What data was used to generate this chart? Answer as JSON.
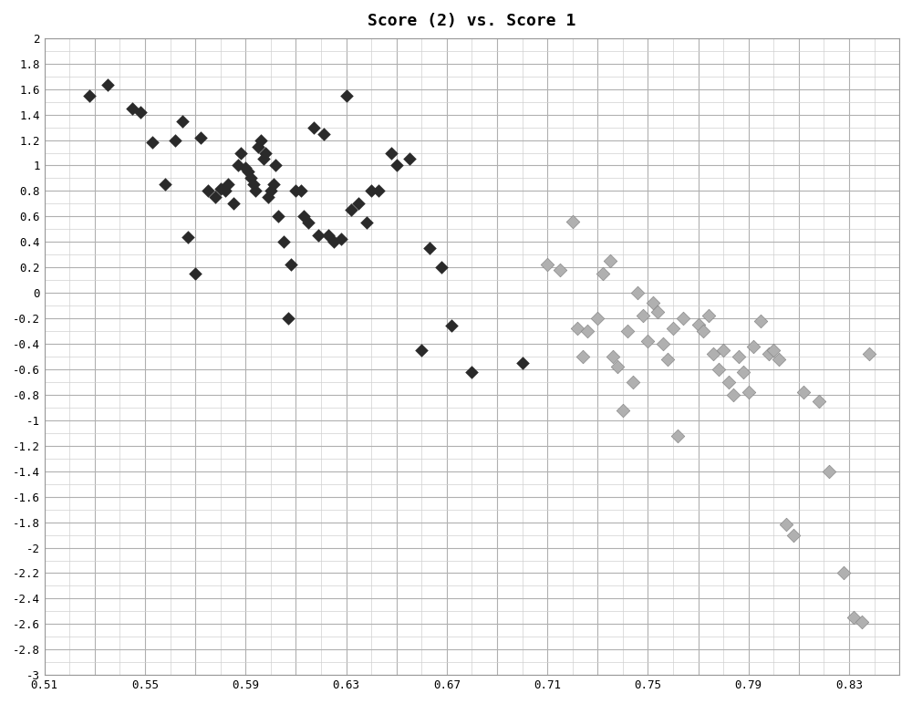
{
  "title": "Score (2) vs. Score 1",
  "xlim": [
    0.51,
    0.85
  ],
  "ylim": [
    -3.0,
    2.0
  ],
  "xticks": [
    0.51,
    0.53,
    0.55,
    0.57,
    0.59,
    0.61,
    0.63,
    0.65,
    0.67,
    0.69,
    0.71,
    0.73,
    0.75,
    0.77,
    0.79,
    0.81,
    0.83,
    0.85
  ],
  "yticks": [
    -3.0,
    -2.8,
    -2.6,
    -2.4,
    -2.2,
    -2.0,
    -1.8,
    -1.6,
    -1.4,
    -1.2,
    -1.0,
    -0.8,
    -0.6,
    -0.4,
    -0.2,
    0.0,
    0.2,
    0.4,
    0.6,
    0.8,
    1.0,
    1.2,
    1.4,
    1.6,
    1.8,
    2.0
  ],
  "xtick_labels": [
    "0.51",
    "",
    "0.55",
    "",
    "0.59",
    "",
    "0.63",
    "",
    "0.67",
    "",
    "0.71",
    "",
    "0.75",
    "",
    "0.79",
    "",
    "0.83",
    ""
  ],
  "ytick_labels": [
    "-3",
    "-2.8",
    "-2.6",
    "-2.4",
    "-2.2",
    "-2",
    "-1.8",
    "-1.6",
    "-1.4",
    "-1.2",
    "-1",
    "-0.8",
    "-0.6",
    "-0.4",
    "-0.2",
    "0",
    "0.2",
    "0.4",
    "0.6",
    "0.8",
    "1",
    "1.2",
    "1.4",
    "1.6",
    "1.8",
    "2"
  ],
  "dark_x": [
    0.528,
    0.535,
    0.545,
    0.548,
    0.553,
    0.558,
    0.562,
    0.565,
    0.567,
    0.57,
    0.572,
    0.575,
    0.578,
    0.58,
    0.582,
    0.583,
    0.585,
    0.587,
    0.588,
    0.59,
    0.591,
    0.592,
    0.593,
    0.594,
    0.595,
    0.596,
    0.597,
    0.598,
    0.599,
    0.6,
    0.601,
    0.602,
    0.603,
    0.605,
    0.607,
    0.608,
    0.61,
    0.612,
    0.613,
    0.615,
    0.617,
    0.619,
    0.621,
    0.623,
    0.625,
    0.628,
    0.63,
    0.632,
    0.635,
    0.638,
    0.64,
    0.643,
    0.648,
    0.65,
    0.655,
    0.66,
    0.663,
    0.668,
    0.672,
    0.68,
    0.7
  ],
  "dark_y": [
    1.55,
    1.63,
    1.45,
    1.42,
    1.18,
    0.85,
    1.2,
    1.35,
    0.44,
    0.15,
    1.22,
    0.8,
    0.75,
    0.82,
    0.8,
    0.85,
    0.7,
    1.0,
    1.1,
    0.98,
    0.95,
    0.9,
    0.85,
    0.8,
    1.15,
    1.2,
    1.05,
    1.1,
    0.75,
    0.8,
    0.85,
    1.0,
    0.6,
    0.4,
    -0.2,
    0.22,
    0.8,
    0.8,
    0.6,
    0.55,
    1.3,
    0.45,
    1.25,
    0.45,
    0.4,
    0.42,
    1.55,
    0.65,
    0.7,
    0.55,
    0.8,
    0.8,
    1.1,
    1.0,
    1.05,
    -0.45,
    0.35,
    0.2,
    -0.26,
    -0.62,
    -0.55
  ],
  "light_x": [
    0.71,
    0.715,
    0.72,
    0.722,
    0.724,
    0.726,
    0.73,
    0.732,
    0.735,
    0.736,
    0.738,
    0.74,
    0.742,
    0.744,
    0.746,
    0.748,
    0.75,
    0.752,
    0.754,
    0.756,
    0.758,
    0.76,
    0.762,
    0.764,
    0.77,
    0.772,
    0.774,
    0.776,
    0.778,
    0.78,
    0.782,
    0.784,
    0.786,
    0.788,
    0.79,
    0.792,
    0.795,
    0.798,
    0.8,
    0.802,
    0.805,
    0.808,
    0.812,
    0.818,
    0.822,
    0.828,
    0.832,
    0.835,
    0.838
  ],
  "light_y": [
    0.22,
    0.18,
    0.56,
    -0.28,
    -0.5,
    -0.3,
    -0.2,
    0.15,
    0.25,
    -0.5,
    -0.58,
    -0.92,
    -0.3,
    -0.7,
    0.0,
    -0.18,
    -0.38,
    -0.08,
    -0.15,
    -0.4,
    -0.52,
    -0.28,
    -1.12,
    -0.2,
    -0.25,
    -0.3,
    -0.18,
    -0.48,
    -0.6,
    -0.45,
    -0.7,
    -0.8,
    -0.5,
    -0.62,
    -0.78,
    -0.42,
    -0.22,
    -0.48,
    -0.45,
    -0.52,
    -1.82,
    -1.9,
    -0.78,
    -0.85,
    -1.4,
    -2.2,
    -2.55,
    -2.58,
    -0.48
  ],
  "dark_color": "#2a2a2a",
  "light_color": "#b0b0b0",
  "light_edge_color": "#888888",
  "background_color": "#ffffff",
  "grid_color_major": "#b0b0b0",
  "grid_color_minor": "#d0d0d0",
  "marker": "D",
  "marker_size": 55,
  "title_fontsize": 13,
  "tick_fontsize": 9,
  "figsize": [
    10.0,
    7.72
  ],
  "dpi": 100
}
